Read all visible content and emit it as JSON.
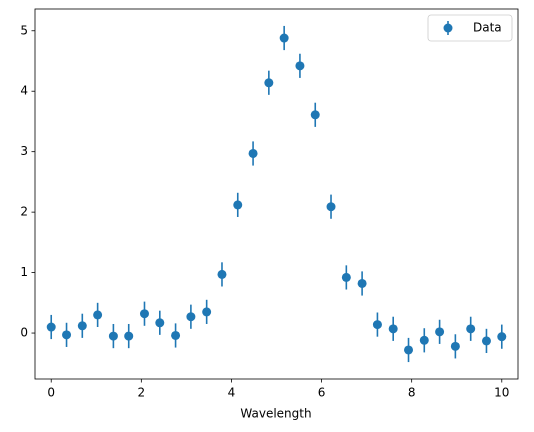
{
  "chart_data": {
    "type": "errorbar",
    "xlabel": "Wavelength",
    "x": [
      0,
      0.34,
      0.69,
      1.03,
      1.38,
      1.72,
      2.07,
      2.41,
      2.76,
      3.1,
      3.45,
      3.79,
      4.14,
      4.48,
      4.83,
      5.17,
      5.52,
      5.86,
      6.21,
      6.55,
      6.9,
      7.24,
      7.59,
      7.93,
      8.28,
      8.62,
      8.97,
      9.31,
      9.66,
      10
    ],
    "series": [
      {
        "name": "Data",
        "color": "#1f77b4",
        "values": [
          0.1,
          -0.03,
          0.12,
          0.3,
          -0.05,
          -0.05,
          0.32,
          0.17,
          -0.04,
          0.27,
          0.35,
          0.97,
          2.12,
          2.97,
          4.14,
          4.88,
          4.42,
          3.61,
          2.09,
          0.92,
          0.82,
          0.14,
          0.07,
          -0.28,
          -0.12,
          0.02,
          -0.22,
          0.07,
          -0.13,
          -0.06
        ],
        "errors": [
          0.2,
          0.2,
          0.2,
          0.2,
          0.2,
          0.2,
          0.2,
          0.2,
          0.2,
          0.2,
          0.2,
          0.2,
          0.2,
          0.2,
          0.2,
          0.2,
          0.2,
          0.2,
          0.2,
          0.2,
          0.2,
          0.2,
          0.2,
          0.2,
          0.2,
          0.2,
          0.2,
          0.2,
          0.2,
          0.2
        ]
      }
    ],
    "xlim": [
      -0.36,
      10.36
    ],
    "xticks": [
      0,
      2,
      4,
      6,
      8,
      10
    ],
    "ylim": [
      -0.76,
      5.36
    ],
    "yticks": [
      0,
      1,
      2,
      3,
      4,
      5
    ],
    "legend": "upper right"
  }
}
